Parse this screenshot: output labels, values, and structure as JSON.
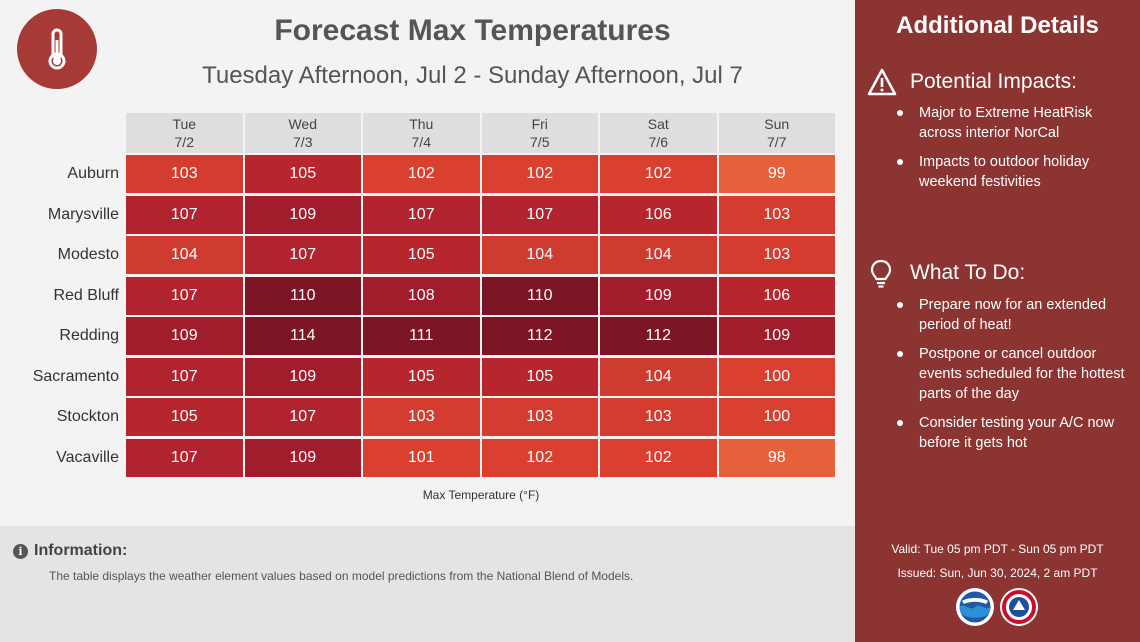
{
  "header": {
    "title": "Forecast Max Temperatures",
    "subtitle": "Tuesday Afternoon, Jul 2 - Sunday Afternoon, Jul 7",
    "icon": "thermometer-icon"
  },
  "chart_data": {
    "type": "heatmap",
    "title": "Forecast Max Temperatures",
    "subtitle": "Tuesday Afternoon, Jul 2 - Sunday Afternoon, Jul 7",
    "columns": [
      {
        "day": "Tue",
        "date": "7/2"
      },
      {
        "day": "Wed",
        "date": "7/3"
      },
      {
        "day": "Thu",
        "date": "7/4"
      },
      {
        "day": "Fri",
        "date": "7/5"
      },
      {
        "day": "Sat",
        "date": "7/6"
      },
      {
        "day": "Sun",
        "date": "7/7"
      }
    ],
    "rows": [
      "Auburn",
      "Marysville",
      "Modesto",
      "Red Bluff",
      "Redding",
      "Sacramento",
      "Stockton",
      "Vacaville"
    ],
    "values": [
      [
        103,
        105,
        102,
        102,
        102,
        99
      ],
      [
        107,
        109,
        107,
        107,
        106,
        103
      ],
      [
        104,
        107,
        105,
        104,
        104,
        103
      ],
      [
        107,
        110,
        108,
        110,
        109,
        106
      ],
      [
        109,
        114,
        111,
        112,
        112,
        109
      ],
      [
        107,
        109,
        105,
        105,
        104,
        100
      ],
      [
        105,
        107,
        103,
        103,
        103,
        100
      ],
      [
        107,
        109,
        101,
        102,
        102,
        98
      ]
    ],
    "xlabel": "Max Temperature (°F)",
    "color_scale": {
      "98": "#e4613c",
      "99": "#e4613c",
      "100": "#d9402f",
      "101": "#d9402f",
      "102": "#d9402f",
      "103": "#d33c2e",
      "104": "#cf3b2f",
      "105": "#b8262d",
      "106": "#b8262d",
      "107": "#b22330",
      "108": "#a11d2c",
      "109": "#a11d2c",
      "110": "#7c1626",
      "111": "#7c1626",
      "112": "#7c1626",
      "114": "#7c1626"
    }
  },
  "information": {
    "icon": "info-icon",
    "title": "Information:",
    "text": "The table displays the weather element values based on model predictions from the National Blend of Models."
  },
  "sidebar": {
    "title": "Additional Details",
    "impacts": {
      "icon": "warning-icon",
      "title": "Potential Impacts:",
      "items": [
        "Major to Extreme HeatRisk across interior NorCal",
        "Impacts to outdoor holiday weekend festivities"
      ]
    },
    "todo": {
      "icon": "lightbulb-icon",
      "title": "What To Do:",
      "items": [
        "Prepare now for an extended period of heat!",
        "Postpone or cancel outdoor events scheduled for the hottest parts of the day",
        "Consider testing your A/C now before it gets hot"
      ]
    },
    "valid": "Valid: Tue 05 pm PDT - Sun 05 pm PDT",
    "issued": "Issued: Sun, Jun 30, 2024, 2 am PDT",
    "logos": [
      "noaa-logo",
      "nws-logo"
    ]
  }
}
